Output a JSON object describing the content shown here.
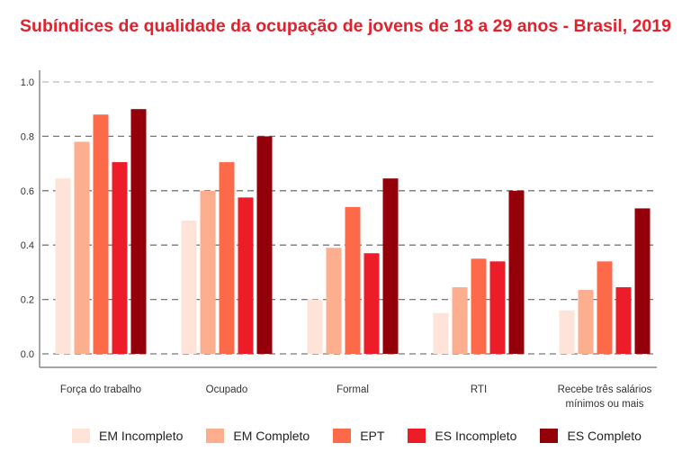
{
  "chart_data": {
    "type": "bar",
    "title": "Subíndices de qualidade da ocupação de jovens de 18 a 29 anos - Brasil, 2019",
    "categories": [
      "Força do trabalho",
      "Ocupado",
      "Formal",
      "RTI",
      "Recebe três salários mínimos ou mais"
    ],
    "category_lines": [
      [
        "Força do trabalho"
      ],
      [
        "Ocupado"
      ],
      [
        "Formal"
      ],
      [
        "RTI"
      ],
      [
        "Recebe três salários",
        "mínimos ou mais"
      ]
    ],
    "series": [
      {
        "name": "EM Incompleto",
        "color": "#fee3d8",
        "values": [
          0.645,
          0.49,
          0.2,
          0.15,
          0.16
        ]
      },
      {
        "name": "EM Completo",
        "color": "#fcae8f",
        "values": [
          0.78,
          0.6,
          0.39,
          0.245,
          0.235
        ]
      },
      {
        "name": "EPT",
        "color": "#fd6a4a",
        "values": [
          0.88,
          0.705,
          0.54,
          0.35,
          0.34
        ]
      },
      {
        "name": "ES Incompleto",
        "color": "#ec1c28",
        "values": [
          0.705,
          0.575,
          0.37,
          0.34,
          0.245
        ]
      },
      {
        "name": "ES Completo",
        "color": "#930009",
        "values": [
          0.9,
          0.8,
          0.645,
          0.6,
          0.535
        ]
      }
    ],
    "ylim": [
      0,
      1.0
    ],
    "yticks": [
      "0.0",
      "0.2",
      "0.4",
      "0.6",
      "0.8",
      "1.0"
    ],
    "grid": true,
    "legend": "bottom",
    "xlabel": "",
    "ylabel": ""
  }
}
